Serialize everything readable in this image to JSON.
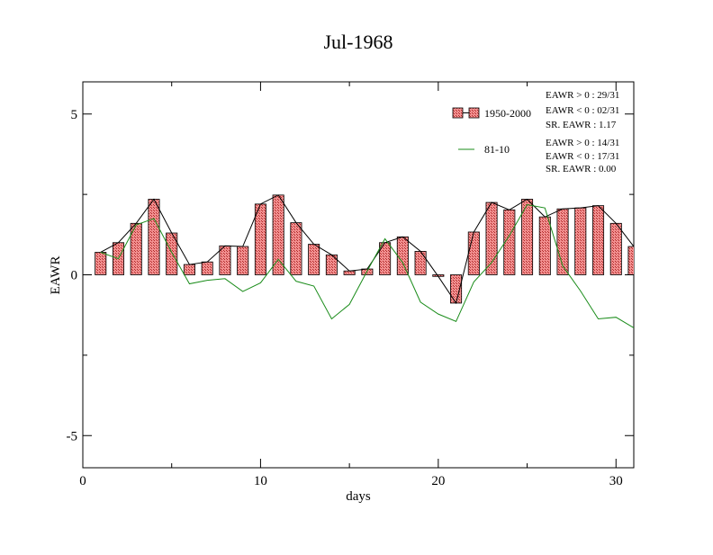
{
  "chart_data": {
    "type": "bar",
    "title": "Jul-1968",
    "xlabel": "days",
    "ylabel": "EAWR",
    "xlim": [
      0,
      31
    ],
    "ylim": [
      -6,
      6
    ],
    "x_ticks": [
      0,
      10,
      20,
      30
    ],
    "y_ticks": [
      -5,
      0,
      5
    ],
    "grid": false,
    "legend_position": "top-right",
    "x": [
      1,
      2,
      3,
      4,
      5,
      6,
      7,
      8,
      9,
      10,
      11,
      12,
      13,
      14,
      15,
      16,
      17,
      18,
      19,
      20,
      21,
      22,
      23,
      24,
      25,
      26,
      27,
      28,
      29,
      30,
      31
    ],
    "series": [
      {
        "name": "1950-2000",
        "kind": "bar",
        "values": [
          0.7,
          1.0,
          1.6,
          2.35,
          1.3,
          0.32,
          0.4,
          0.9,
          0.88,
          2.2,
          2.48,
          1.62,
          0.95,
          0.62,
          0.12,
          0.18,
          1.0,
          1.18,
          0.73,
          -0.05,
          -0.88,
          1.33,
          2.25,
          2.02,
          2.35,
          1.8,
          2.05,
          2.08,
          2.15,
          1.6,
          0.88
        ]
      },
      {
        "name": "81-10",
        "kind": "line",
        "values": [
          0.7,
          0.5,
          1.55,
          1.75,
          0.7,
          -0.28,
          -0.17,
          -0.12,
          -0.52,
          -0.25,
          0.48,
          -0.2,
          -0.35,
          -1.37,
          -0.92,
          0.12,
          1.12,
          0.38,
          -0.85,
          -1.22,
          -1.45,
          -0.22,
          0.38,
          1.22,
          2.18,
          2.08,
          0.28,
          -0.5,
          -1.37,
          -1.32,
          -1.65
        ]
      }
    ],
    "stats": {
      "all": [
        "EAWR > 0 : 29/31",
        "EAWR < 0 : 02/31",
        "SR. EAWR :  1.17"
      ],
      "recent": [
        "EAWR > 0 : 14/31",
        "EAWR < 0 : 17/31",
        "SR. EAWR :  0.00"
      ]
    },
    "colors": {
      "bar_fill": "#f08080",
      "bar_hatch": "#c03030",
      "bar_line": "#000000",
      "recent_line": "#1a8c1a",
      "axes": "#000000"
    }
  }
}
